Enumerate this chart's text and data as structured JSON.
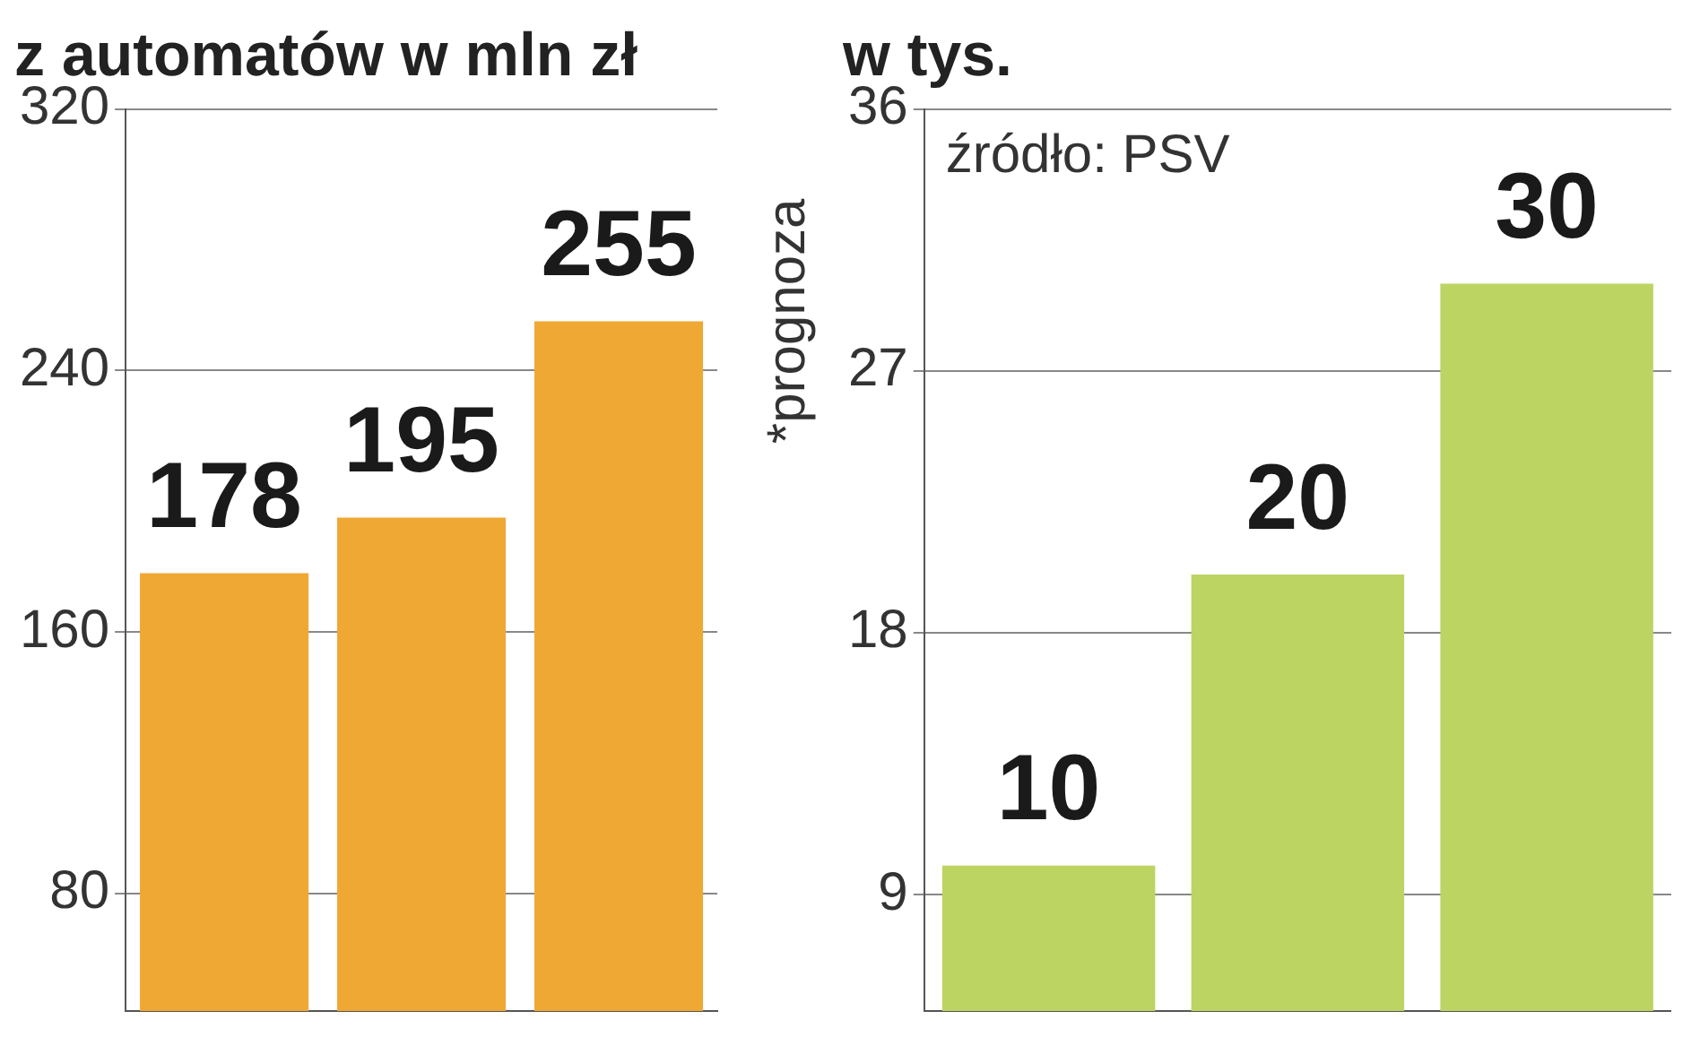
{
  "chart_data": [
    {
      "type": "bar",
      "title": "z automatów w mln zł",
      "categories": [
        null,
        null,
        null
      ],
      "values": [
        178,
        195,
        255
      ],
      "color": "#f0a834",
      "ylim": [
        44,
        320
      ],
      "yticks": [
        80,
        160,
        240,
        320
      ],
      "grid": "y",
      "data_labels": true,
      "legend": false,
      "annotations": [
        "*prognoza"
      ]
    },
    {
      "type": "bar",
      "title": "w tys.",
      "categories": [
        null,
        null,
        null
      ],
      "values": [
        10,
        20,
        30
      ],
      "color": "#bcd462",
      "ylim": [
        5,
        36
      ],
      "yticks": [
        9,
        18,
        27,
        36
      ],
      "grid": "y",
      "data_labels": true,
      "legend": false,
      "annotations": [
        "źródło: PSV"
      ]
    }
  ]
}
